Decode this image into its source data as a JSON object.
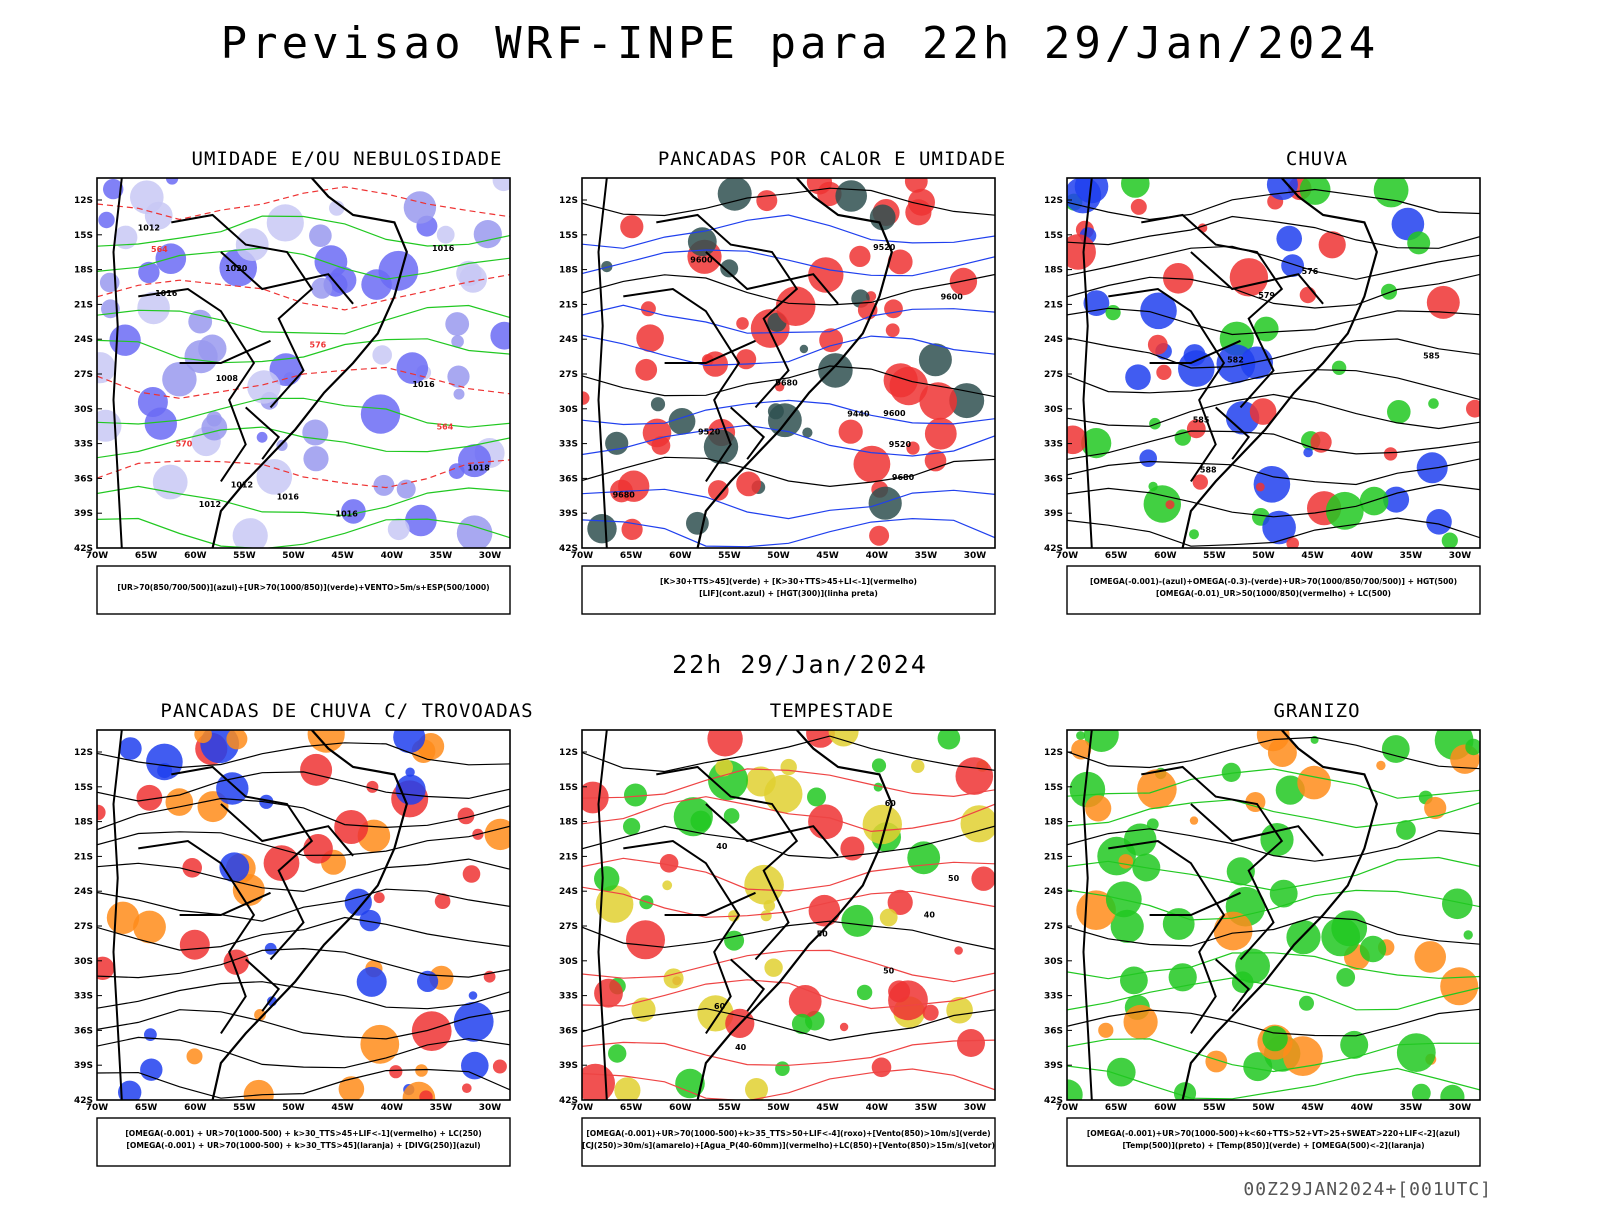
{
  "header": {
    "title": "Previsao WRF-INPE  para 22h 29/Jan/2024",
    "mid_time": "22h 29/Jan/2024",
    "run_code": "00Z29JAN2024+[001UTC]"
  },
  "axes": {
    "lat_labels": [
      "12S",
      "15S",
      "18S",
      "21S",
      "24S",
      "27S",
      "30S",
      "33S",
      "36S",
      "39S",
      "42S"
    ],
    "lon_labels": [
      "70W",
      "65W",
      "60W",
      "55W",
      "50W",
      "45W",
      "40W",
      "35W",
      "30W"
    ]
  },
  "panels": [
    {
      "id": "umidade",
      "title": "UMIDADE E/OU NEBULOSIDADE",
      "legend": [
        "[UR>70(850/700/500)](azul)+[UR>70(1000/850)](verde)+VENTO>5m/s+ESP(500/1000)"
      ],
      "contour_labels": [
        "1012",
        "1016",
        "1016",
        "1012",
        "1016",
        "1018",
        "1016",
        "1012",
        "1020",
        "1016",
        "1008",
        "570",
        "576",
        "564",
        "564"
      ]
    },
    {
      "id": "pancadas",
      "title": "PANCADAS POR CALOR E UMIDADE",
      "legend": [
        "[K>30+TTS>45](verde) + [K>30+TTS>45+LI<-1](vermelho)",
        "[LIF](cont.azul) + [HGT(300)](linha preta)"
      ],
      "contour_labels": [
        "9680",
        "9680",
        "9600",
        "9520",
        "9600",
        "9440",
        "9680",
        "9520",
        "9600",
        "9520"
      ]
    },
    {
      "id": "chuva",
      "title": "CHUVA",
      "legend": [
        "[OMEGA(-0.001)-(azul)+OMEGA(-0.3)-(verde)+UR>70(1000/850/700/500)] + HGT(500)",
        "[OMEGA(-0.01)_UR>50(1000/850)(vermelho) + LC(500)"
      ],
      "contour_labels": [
        "588",
        "585",
        "576",
        "579",
        "585",
        "582"
      ]
    },
    {
      "id": "trovoadas",
      "title": "PANCADAS DE CHUVA C/ TROVOADAS",
      "legend": [
        "[OMEGA(-0.001) + UR>70(1000-500) + k>30_TTS>45+LIF<-1](vermelho) + LC(250)",
        "[OMEGA(-0.001) + UR>70(1000-500) + k>30_TTS>45](laranja) + [DIVG(250)](azul)"
      ],
      "contour_labels": []
    },
    {
      "id": "tempestade",
      "title": "TEMPESTADE",
      "legend": [
        "[OMEGA(-0.001)+UR>70(1000-500)+k>35_TTS>50+LIF<-4](roxo)+[Vento(850)>10m/s](verde)",
        "[CJ(250)>30m/s](amarelo)+[Agua_P(40-60mm)](vermelho)+LC(850)+[Vento(850)>15m/s](vetor)"
      ],
      "contour_labels": [
        "60",
        "50",
        "40",
        "40",
        "50",
        "60",
        "50",
        "40"
      ]
    },
    {
      "id": "granizo",
      "title": "GRANIZO",
      "legend": [
        "[OMEGA(-0.001)+UR>70(1000-500)+k<60+TTS>52+VT>25+SWEAT>220+LIF<-2](azul)",
        "[Temp(500)](preto) + [Temp(850)](verde) + [OMEGA(500)<-2](laranja)"
      ],
      "contour_labels": []
    }
  ]
}
